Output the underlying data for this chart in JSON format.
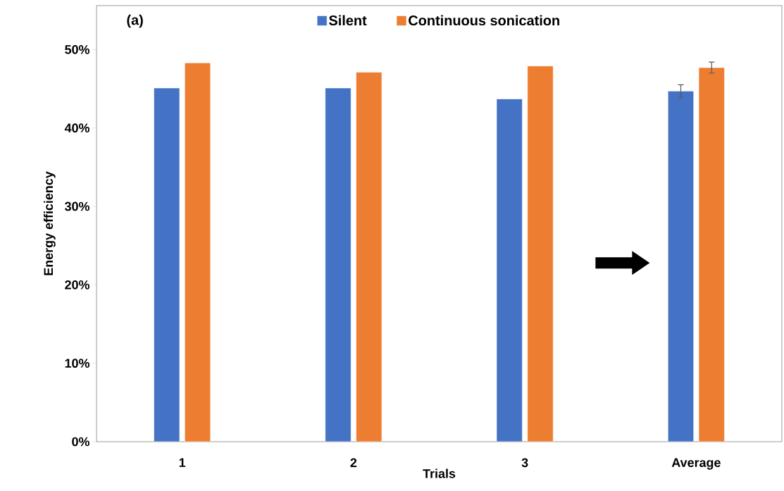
{
  "chart_data": {
    "type": "bar",
    "xlabel": "Trials",
    "ylabel": "Energy efficiency",
    "categories": [
      "1",
      "2",
      "3",
      "Average"
    ],
    "series": [
      {
        "name": "Silent",
        "color": "#4472c4",
        "values": [
          45.1,
          45.1,
          43.7,
          44.7
        ],
        "errors": [
          null,
          null,
          null,
          0.8
        ]
      },
      {
        "name": "Continuous sonication",
        "color": "#ed7d31",
        "values": [
          48.3,
          47.1,
          47.9,
          47.7
        ],
        "errors": [
          null,
          null,
          null,
          0.7
        ]
      }
    ],
    "ylim": [
      0,
      55.6
    ],
    "yticks": [
      {
        "value": 0,
        "label": "0%"
      },
      {
        "value": 10,
        "label": "10%"
      },
      {
        "value": 20,
        "label": "20%"
      },
      {
        "value": 30,
        "label": "30%"
      },
      {
        "value": 40,
        "label": "40%"
      },
      {
        "value": 50,
        "label": "50%"
      }
    ],
    "annotations": [
      "(a)"
    ],
    "legend": "top",
    "grid": false
  }
}
